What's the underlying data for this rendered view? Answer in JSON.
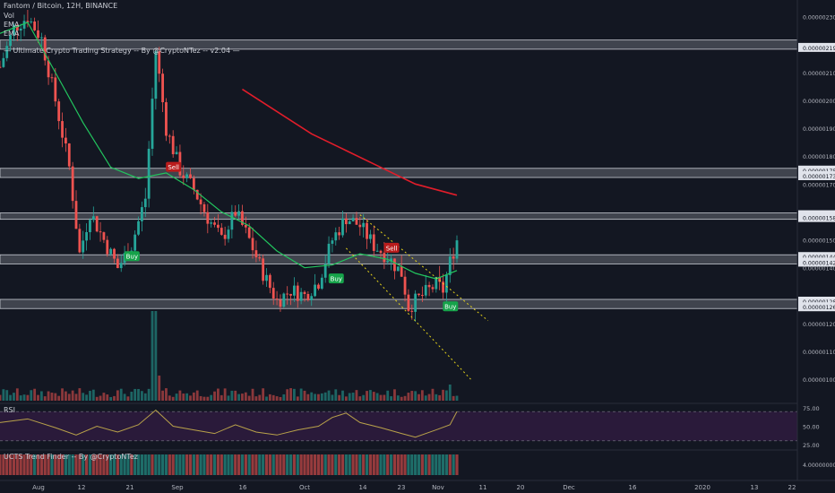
{
  "header": {
    "symbol_line": "Fantom / Bitcoin, 12H, BINANCE",
    "indicators": [
      "Vol",
      "EMA",
      "EMA",
      "— Ultimate Crypto Trading Strategy -- By @CryptoNTez -- v2.04 —"
    ]
  },
  "colors": {
    "background": "#131722",
    "up": "#26a69a",
    "down": "#ef5350",
    "ema_short": "#22c55e",
    "ema_long": "#e11d2a",
    "channel": "#e6d31a",
    "rsi_line": "#b9a24a",
    "rsi_band": "#2a1a3a",
    "zone": "#9598a1"
  },
  "chart_data": {
    "type": "candlestick",
    "x_ticks": [
      "Aug",
      "12",
      "21",
      "Sep",
      "16",
      "Oct",
      "14",
      "23",
      "Nov",
      "11",
      "20",
      "Dec",
      "16",
      "2020",
      "13",
      "22"
    ],
    "y_ticks": [
      "0.00000230",
      "0.00000219",
      "0.00000210",
      "0.00000200",
      "0.00000190",
      "0.00000180",
      "0.00000175",
      "0.00000173",
      "0.00000170",
      "0.00000159",
      "0.00000158",
      "0.00000150",
      "0.00000144",
      "0.00000142",
      "0.00000140",
      "0.00000128",
      "0.00000126",
      "0.00000120",
      "0.00000110",
      "0.00000100"
    ],
    "ylim": [
      9.2e-07,
      2.36e-06
    ],
    "close_path": [
      [
        0,
        2.12e-06
      ],
      [
        4,
        2.26e-06
      ],
      [
        8,
        2.3e-06
      ],
      [
        12,
        2.22e-06
      ],
      [
        16,
        2e-06
      ],
      [
        20,
        1.76e-06
      ],
      [
        23,
        1.45e-06
      ],
      [
        26,
        1.6e-06
      ],
      [
        30,
        1.5e-06
      ],
      [
        34,
        1.4e-06
      ],
      [
        38,
        1.48e-06
      ],
      [
        42,
        1.65e-06
      ],
      [
        45,
        2.18e-06
      ],
      [
        48,
        1.9e-06
      ],
      [
        52,
        1.75e-06
      ],
      [
        56,
        1.68e-06
      ],
      [
        60,
        1.58e-06
      ],
      [
        64,
        1.5e-06
      ],
      [
        68,
        1.6e-06
      ],
      [
        72,
        1.5e-06
      ],
      [
        76,
        1.38e-06
      ],
      [
        80,
        1.28e-06
      ],
      [
        84,
        1.32e-06
      ],
      [
        88,
        1.3e-06
      ],
      [
        92,
        1.35e-06
      ],
      [
        96,
        1.5e-06
      ],
      [
        100,
        1.58e-06
      ],
      [
        104,
        1.55e-06
      ],
      [
        108,
        1.48e-06
      ],
      [
        112,
        1.44e-06
      ],
      [
        116,
        1.38e-06
      ],
      [
        118,
        1.26e-06
      ],
      [
        122,
        1.3e-06
      ],
      [
        126,
        1.34e-06
      ],
      [
        128,
        1.32e-06
      ],
      [
        130,
        1.42e-06
      ],
      [
        132,
        1.5e-06
      ]
    ],
    "ema_short_path": [
      [
        0,
        2.24e-06
      ],
      [
        8,
        2.28e-06
      ],
      [
        16,
        2.1e-06
      ],
      [
        24,
        1.92e-06
      ],
      [
        32,
        1.76e-06
      ],
      [
        40,
        1.72e-06
      ],
      [
        48,
        1.74e-06
      ],
      [
        56,
        1.68e-06
      ],
      [
        64,
        1.6e-06
      ],
      [
        72,
        1.55e-06
      ],
      [
        80,
        1.46e-06
      ],
      [
        88,
        1.4e-06
      ],
      [
        96,
        1.41e-06
      ],
      [
        104,
        1.45e-06
      ],
      [
        112,
        1.43e-06
      ],
      [
        120,
        1.38e-06
      ],
      [
        126,
        1.36e-06
      ],
      [
        132,
        1.39e-06
      ]
    ],
    "ema_long_path": [
      [
        70,
        2.04e-06
      ],
      [
        80,
        1.96e-06
      ],
      [
        90,
        1.88e-06
      ],
      [
        100,
        1.82e-06
      ],
      [
        110,
        1.76e-06
      ],
      [
        120,
        1.7e-06
      ],
      [
        132,
        1.66e-06
      ]
    ],
    "zones": [
      {
        "lo": 2.19e-06,
        "hi": 2.21e-06
      },
      {
        "lo": 1.73e-06,
        "hi": 1.75e-06
      },
      {
        "lo": 1.58e-06,
        "hi": 1.59e-06
      },
      {
        "lo": 1.42e-06,
        "hi": 1.44e-06
      },
      {
        "lo": 1.26e-06,
        "hi": 1.28e-06
      }
    ],
    "channel_upper": [
      [
        104,
        1.59e-06
      ],
      [
        141,
        1.21e-06
      ]
    ],
    "channel_lower": [
      [
        100,
        1.47e-06
      ],
      [
        136,
        1e-06
      ]
    ],
    "signals": [
      {
        "label": "Buy",
        "x": 38,
        "y": 1.44e-06,
        "kind": "buy"
      },
      {
        "label": "Sell",
        "x": 50,
        "y": 1.76e-06,
        "kind": "sell"
      },
      {
        "label": "Buy",
        "x": 97,
        "y": 1.36e-06,
        "kind": "buy"
      },
      {
        "label": "Sell",
        "x": 113,
        "y": 1.47e-06,
        "kind": "sell"
      },
      {
        "label": "Buy",
        "x": 130,
        "y": 1.26e-06,
        "kind": "buy"
      }
    ],
    "rsi": {
      "label": "RSI",
      "y_ticks": [
        "75.00",
        "50.00",
        "25.00"
      ],
      "levels": [
        70,
        30
      ],
      "ylim": [
        20,
        80
      ],
      "path": [
        [
          0,
          55
        ],
        [
          8,
          60
        ],
        [
          16,
          48
        ],
        [
          22,
          38
        ],
        [
          28,
          50
        ],
        [
          34,
          42
        ],
        [
          40,
          52
        ],
        [
          45,
          72
        ],
        [
          50,
          50
        ],
        [
          56,
          45
        ],
        [
          62,
          40
        ],
        [
          68,
          52
        ],
        [
          74,
          42
        ],
        [
          80,
          38
        ],
        [
          86,
          45
        ],
        [
          92,
          50
        ],
        [
          96,
          62
        ],
        [
          100,
          68
        ],
        [
          104,
          55
        ],
        [
          110,
          48
        ],
        [
          116,
          40
        ],
        [
          120,
          35
        ],
        [
          126,
          45
        ],
        [
          130,
          52
        ],
        [
          132,
          70
        ]
      ]
    },
    "trend_finder": {
      "label": "UCTS Trend Finder -- By @CryptoNTez",
      "y_tick": "4.00000000"
    }
  }
}
